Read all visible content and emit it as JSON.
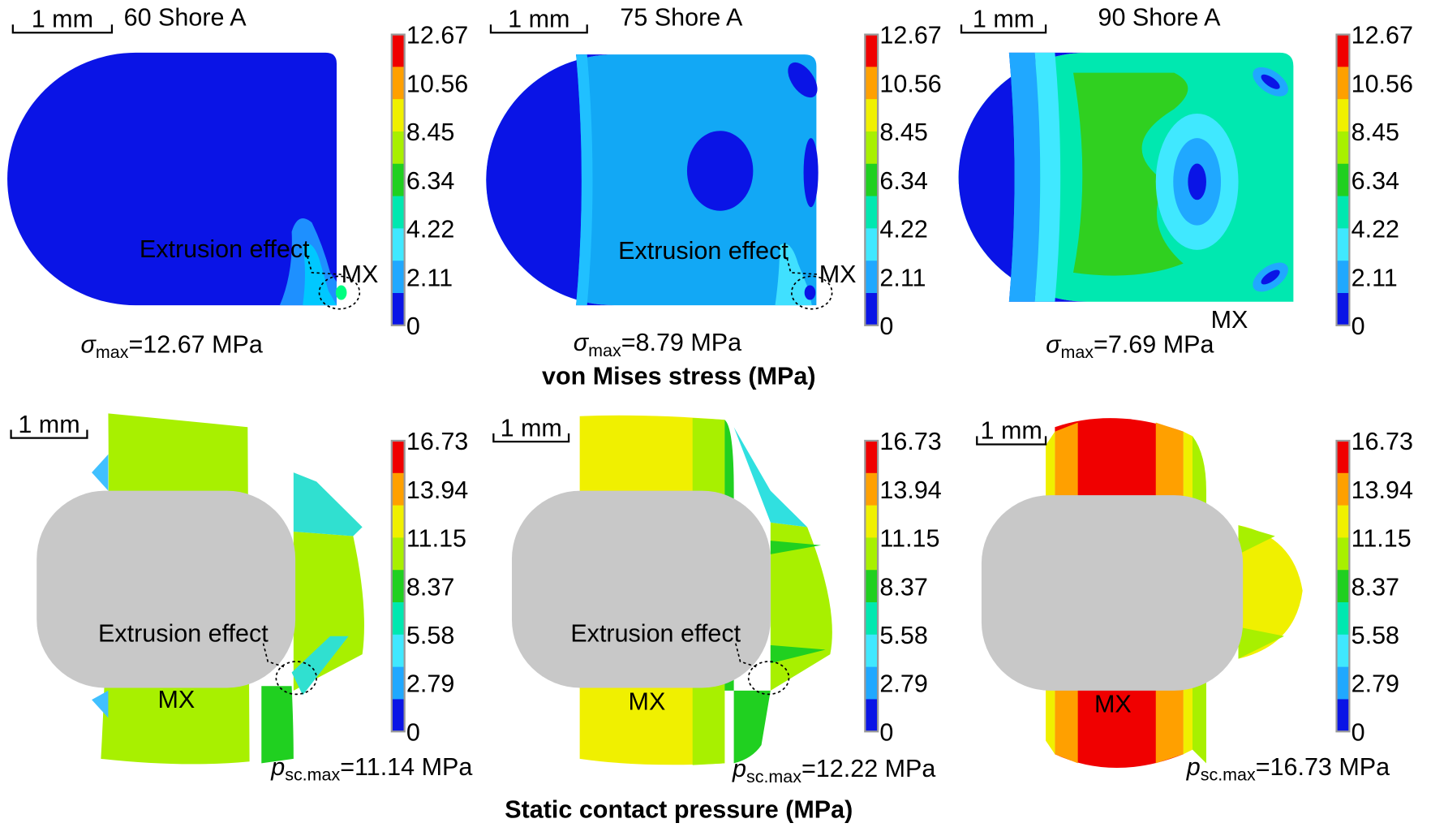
{
  "top_row": {
    "caption": "von Mises stress (MPa)",
    "colorbar_ticks": [
      "12.67",
      "10.56",
      "8.45",
      "6.34",
      "4.22",
      "2.11",
      "0"
    ],
    "panels": [
      {
        "scale_bar": "1 mm",
        "label": "60 Shore A",
        "annotation": "Extrusion effect",
        "marker": "MX",
        "max_symbol": "σ",
        "max_subscript": "max",
        "max_value": "=12.67 MPa"
      },
      {
        "scale_bar": "1 mm",
        "label": "75 Shore A",
        "annotation": "Extrusion effect",
        "marker": "MX",
        "max_symbol": "σ",
        "max_subscript": "max",
        "max_value": "=8.79 MPa"
      },
      {
        "scale_bar": "1 mm",
        "label": "90 Shore A",
        "marker": "MX",
        "max_symbol": "σ",
        "max_subscript": "max",
        "max_value": "=7.69 MPa"
      }
    ]
  },
  "bottom_row": {
    "caption": "Static contact pressure (MPa)",
    "colorbar_ticks": [
      "16.73",
      "13.94",
      "11.15",
      "8.37",
      "5.58",
      "2.79",
      "0"
    ],
    "panels": [
      {
        "scale_bar": "1 mm",
        "annotation": "Extrusion effect",
        "marker": "MX",
        "max_symbol": "p",
        "max_subscript": "sc.max",
        "max_value": "=11.14 MPa"
      },
      {
        "scale_bar": "1 mm",
        "annotation": "Extrusion effect",
        "marker": "MX",
        "max_symbol": "p",
        "max_subscript": "sc.max",
        "max_value": "=12.22 MPa"
      },
      {
        "scale_bar": "1 mm",
        "marker": "MX",
        "max_symbol": "p",
        "max_subscript": "sc.max",
        "max_value": "=16.73 MPa"
      }
    ]
  }
}
